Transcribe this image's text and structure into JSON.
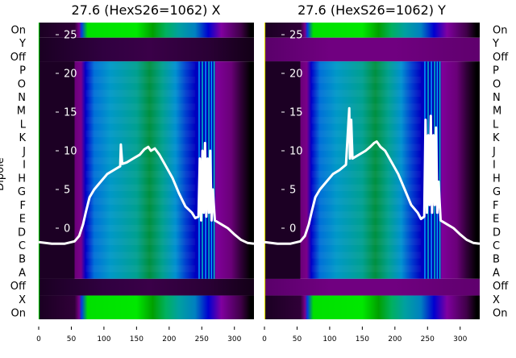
{
  "chart_data": [
    {
      "type": "heatmap",
      "title": "27.6 (HexS26=1062) X",
      "ylabel": "Dipole",
      "row_labels": [
        "On",
        "Y",
        "Off",
        "P",
        "O",
        "N",
        "M",
        "L",
        "K",
        "J",
        "I",
        "H",
        "G",
        "F",
        "E",
        "D",
        "C",
        "B",
        "A",
        "Off",
        "X",
        "On"
      ],
      "xlim": [
        0,
        330
      ],
      "x_ticks": [
        0,
        50,
        100,
        150,
        200,
        250,
        300
      ],
      "overlay_yticks": [
        0,
        5,
        10,
        15,
        20,
        25
      ],
      "overlay_ylim": [
        -3,
        26
      ],
      "overlay_line": {
        "x": [
          0,
          20,
          40,
          55,
          62,
          68,
          72,
          78,
          85,
          95,
          105,
          115,
          125,
          126,
          128,
          135,
          145,
          155,
          162,
          168,
          172,
          178,
          185,
          195,
          205,
          215,
          225,
          235,
          240,
          245,
          247,
          249,
          251,
          253,
          255,
          257,
          259,
          261,
          263,
          265,
          267,
          270,
          280,
          290,
          300,
          310,
          320,
          330
        ],
        "y": [
          -1.8,
          -2,
          -2,
          -1.7,
          -1,
          0.5,
          2,
          4,
          5,
          6,
          7,
          7.5,
          8,
          10.8,
          8.3,
          8.5,
          9,
          9.5,
          10.2,
          10.5,
          10,
          10.3,
          9.5,
          8,
          6.5,
          4.5,
          2.8,
          2,
          1.3,
          1.5,
          9,
          1,
          10,
          2,
          11,
          1.5,
          9,
          2,
          10,
          1,
          5,
          1,
          0.5,
          0,
          -0.8,
          -1.5,
          -1.9,
          -2
        ]
      }
    },
    {
      "type": "heatmap",
      "title": "27.6 (HexS26=1062) Y",
      "ylabel": "Dipole",
      "row_labels": [
        "On",
        "Y",
        "Off",
        "P",
        "O",
        "N",
        "M",
        "L",
        "K",
        "J",
        "I",
        "H",
        "G",
        "F",
        "E",
        "D",
        "C",
        "B",
        "A",
        "Off",
        "X",
        "On"
      ],
      "xlim": [
        0,
        330
      ],
      "x_ticks": [
        0,
        50,
        100,
        150,
        200,
        250,
        300
      ],
      "overlay_yticks": [
        0,
        5,
        10,
        15,
        20,
        25
      ],
      "overlay_ylim": [
        -3,
        26
      ],
      "overlay_line": {
        "x": [
          0,
          20,
          40,
          55,
          62,
          68,
          72,
          78,
          85,
          95,
          105,
          115,
          125,
          130,
          131,
          133,
          135,
          145,
          155,
          162,
          168,
          172,
          178,
          185,
          195,
          205,
          215,
          225,
          235,
          240,
          245,
          247,
          249,
          251,
          253,
          255,
          257,
          259,
          261,
          263,
          265,
          267,
          270,
          280,
          290,
          300,
          310,
          320,
          330
        ],
        "y": [
          -1.8,
          -2,
          -2,
          -1.7,
          -1,
          0.5,
          2,
          4,
          5,
          6,
          7,
          7.5,
          8.2,
          15.5,
          9,
          14,
          9,
          9.5,
          10,
          10.5,
          11,
          11.2,
          10.5,
          10,
          8.5,
          7,
          5,
          3,
          2,
          1.2,
          1.5,
          14,
          2,
          12,
          3,
          14.5,
          2,
          12,
          3,
          13,
          2,
          6,
          1,
          0.5,
          0,
          -0.8,
          -1.5,
          -1.9,
          -2
        ]
      }
    }
  ]
}
